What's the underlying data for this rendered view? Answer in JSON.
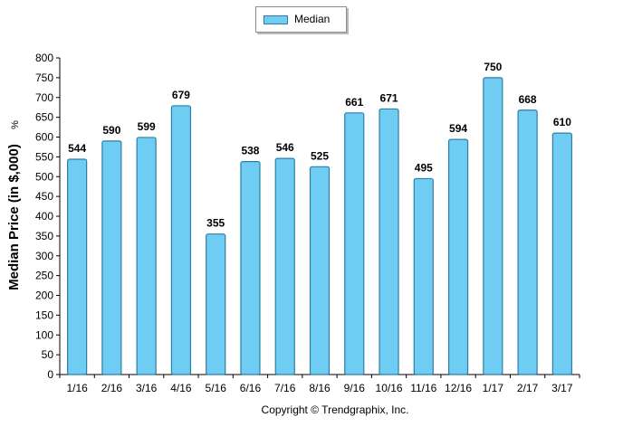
{
  "chart_data": {
    "type": "bar",
    "categories": [
      "1/16",
      "2/16",
      "3/16",
      "4/16",
      "5/16",
      "6/16",
      "7/16",
      "8/16",
      "9/16",
      "10/16",
      "11/16",
      "12/16",
      "1/17",
      "2/17",
      "3/17"
    ],
    "series": [
      {
        "name": "Median",
        "values": [
          544,
          590,
          599,
          679,
          355,
          538,
          546,
          525,
          661,
          671,
          495,
          594,
          750,
          668,
          610
        ]
      }
    ],
    "ylabel": "Median Price (in $,000)",
    "ylabel_suffix": "%",
    "ylim": [
      0,
      800
    ],
    "ytick_step": 50,
    "legend": "top-center",
    "grid": false,
    "bar_color": "#6fcdf4",
    "bar_edge_color": "#2d7ea6"
  },
  "copyright": "Copyright © Trendgraphix, Inc."
}
